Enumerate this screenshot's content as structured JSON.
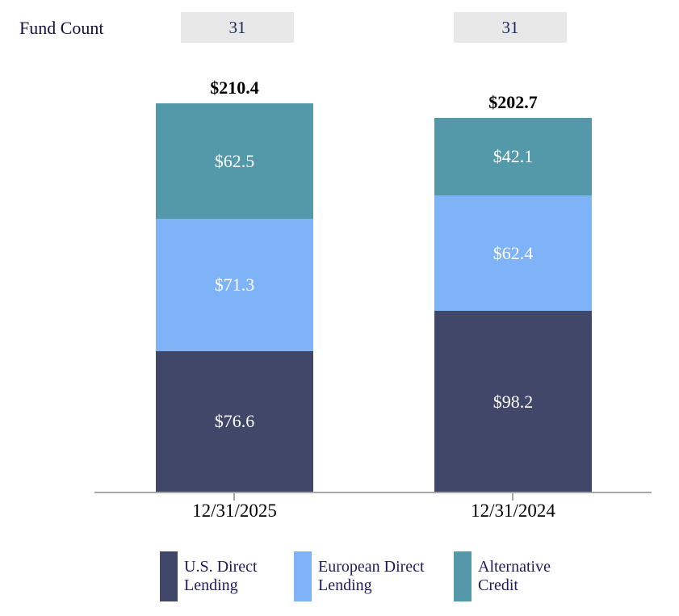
{
  "fund_count": {
    "label": "Fund Count",
    "values": [
      "31",
      "31"
    ]
  },
  "chart_data": {
    "type": "bar",
    "stacked": true,
    "categories": [
      "12/31/2025",
      "12/31/2024"
    ],
    "series": [
      {
        "name": "U.S. Direct Lending",
        "color": "#404768",
        "values": [
          76.6,
          98.2
        ]
      },
      {
        "name": "European Direct Lending",
        "color": "#7FB3F8",
        "values": [
          71.3,
          62.4
        ]
      },
      {
        "name": "Alternative Credit",
        "color": "#5499A9",
        "values": [
          62.5,
          42.1
        ]
      }
    ],
    "totals": [
      210.4,
      202.7
    ],
    "total_labels": [
      "$210.4",
      "$202.7"
    ],
    "value_prefix": "$",
    "legend_position": "bottom",
    "grid": false,
    "colors": {
      "count_box_bg": "#E8E8E8",
      "count_text": "#1B2559",
      "legend_text": "#1E1B5E",
      "axis": "#A6A6A6",
      "category_text": "#000000",
      "total_text": "#000000",
      "segment_label_text": "#FFFFFF",
      "background": "#FFFFFF"
    }
  }
}
